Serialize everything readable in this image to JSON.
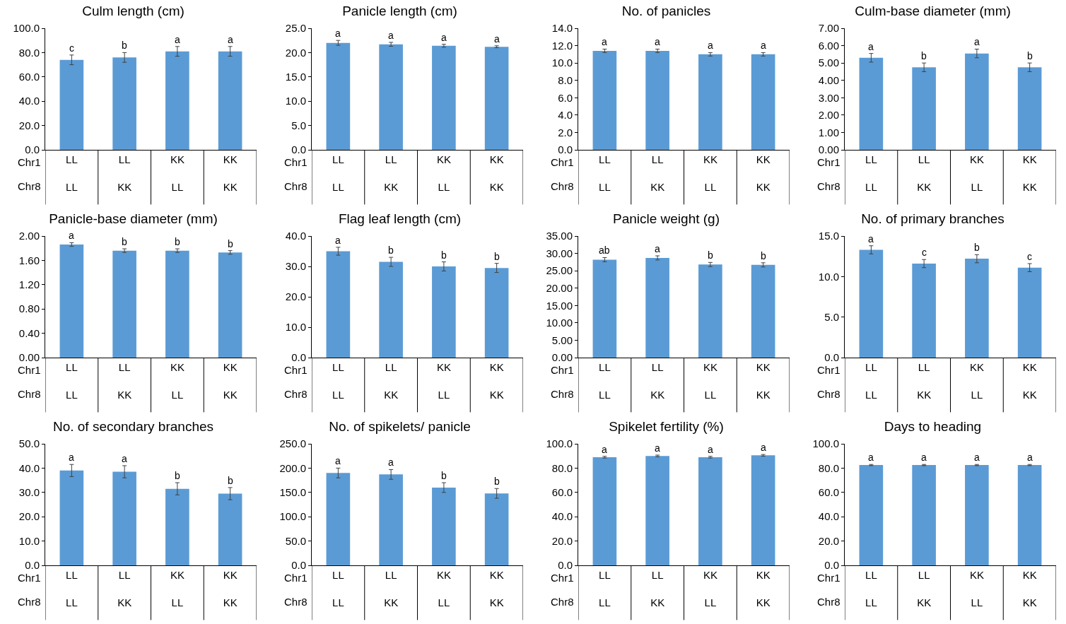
{
  "chart_data": [
    {
      "type": "bar",
      "title": "Culm length (cm)",
      "categories": [
        "LL\nLL",
        "LL\nKK",
        "KK\nLL",
        "KK\nKK"
      ],
      "values": [
        74,
        76,
        81,
        81
      ],
      "errors": [
        4,
        4,
        4,
        4
      ],
      "value_labels": [
        "c",
        "b",
        "a",
        "a"
      ],
      "color": "#5b9bd5",
      "ylim": [
        0,
        100
      ],
      "yticks": [
        {
          "value": 0,
          "label": "0.0"
        },
        {
          "value": 20,
          "label": "20.0"
        },
        {
          "value": 40,
          "label": "40.0"
        },
        {
          "value": 60,
          "label": "60.0"
        },
        {
          "value": 80,
          "label": "80.0"
        },
        {
          "value": 100,
          "label": "100.0"
        }
      ],
      "annotations": [
        "Chr1",
        "Chr8"
      ],
      "grid": false,
      "legend": false
    },
    {
      "type": "bar",
      "title": "Panicle length (cm)",
      "categories": [
        "LL\nLL",
        "LL\nKK",
        "KK\nLL",
        "KK\nKK"
      ],
      "values": [
        22,
        21.7,
        21.4,
        21.2
      ],
      "errors": [
        0.5,
        0.4,
        0.3,
        0.2
      ],
      "value_labels": [
        "a",
        "a",
        "a",
        "a"
      ],
      "color": "#5b9bd5",
      "ylim": [
        0,
        25
      ],
      "yticks": [
        {
          "value": 0,
          "label": "0.0"
        },
        {
          "value": 5,
          "label": "5.0"
        },
        {
          "value": 10,
          "label": "10.0"
        },
        {
          "value": 15,
          "label": "15.0"
        },
        {
          "value": 20,
          "label": "20.0"
        },
        {
          "value": 25,
          "label": "25.0"
        }
      ],
      "annotations": [
        "Chr1",
        "Chr8"
      ],
      "grid": false,
      "legend": false
    },
    {
      "type": "bar",
      "title": "No. of panicles",
      "categories": [
        "LL\nLL",
        "LL\nKK",
        "KK\nLL",
        "KK\nKK"
      ],
      "values": [
        11.4,
        11.4,
        11,
        11
      ],
      "errors": [
        0.2,
        0.2,
        0.2,
        0.2
      ],
      "value_labels": [
        "a",
        "a",
        "a",
        "a"
      ],
      "color": "#5b9bd5",
      "ylim": [
        0,
        14
      ],
      "yticks": [
        {
          "value": 0,
          "label": "0.0"
        },
        {
          "value": 2,
          "label": "2.0"
        },
        {
          "value": 4,
          "label": "4.0"
        },
        {
          "value": 6,
          "label": "6.0"
        },
        {
          "value": 8,
          "label": "8.0"
        },
        {
          "value": 10,
          "label": "10.0"
        },
        {
          "value": 12,
          "label": "12.0"
        },
        {
          "value": 14,
          "label": "14.0"
        }
      ],
      "annotations": [
        "Chr1",
        "Chr8"
      ],
      "grid": false,
      "legend": false
    },
    {
      "type": "bar",
      "title": "Culm-base diameter (mm)",
      "categories": [
        "LL\nLL",
        "LL\nKK",
        "KK\nLL",
        "KK\nKK"
      ],
      "values": [
        5.3,
        4.75,
        5.55,
        4.75
      ],
      "errors": [
        0.25,
        0.25,
        0.25,
        0.25
      ],
      "value_labels": [
        "a",
        "b",
        "a",
        "b"
      ],
      "color": "#5b9bd5",
      "ylim": [
        0,
        7
      ],
      "yticks": [
        {
          "value": 0,
          "label": "0.00"
        },
        {
          "value": 1,
          "label": "1.00"
        },
        {
          "value": 2,
          "label": "2.00"
        },
        {
          "value": 3,
          "label": "3.00"
        },
        {
          "value": 4,
          "label": "4.00"
        },
        {
          "value": 5,
          "label": "5.00"
        },
        {
          "value": 6,
          "label": "6.00"
        },
        {
          "value": 7,
          "label": "7.00"
        }
      ],
      "annotations": [
        "Chr1",
        "Chr8"
      ],
      "grid": false,
      "legend": false
    },
    {
      "type": "bar",
      "title": "Panicle-base diameter (mm)",
      "categories": [
        "LL\nLL",
        "LL\nKK",
        "KK\nLL",
        "KK\nKK"
      ],
      "values": [
        1.86,
        1.76,
        1.76,
        1.73
      ],
      "errors": [
        0.03,
        0.03,
        0.03,
        0.03
      ],
      "value_labels": [
        "a",
        "b",
        "b",
        "b"
      ],
      "color": "#5b9bd5",
      "ylim": [
        0,
        2
      ],
      "yticks": [
        {
          "value": 0,
          "label": "0.00"
        },
        {
          "value": 0.4,
          "label": "0.40"
        },
        {
          "value": 0.8,
          "label": "0.80"
        },
        {
          "value": 1.2,
          "label": "1.20"
        },
        {
          "value": 1.6,
          "label": "1.60"
        },
        {
          "value": 2,
          "label": "2.00"
        }
      ],
      "annotations": [
        "Chr1",
        "Chr8"
      ],
      "grid": false,
      "legend": false
    },
    {
      "type": "bar",
      "title": "Flag leaf length (cm)",
      "categories": [
        "LL\nLL",
        "LL\nKK",
        "KK\nLL",
        "KK\nKK"
      ],
      "values": [
        35,
        31.5,
        30,
        29.5
      ],
      "errors": [
        1.3,
        1.5,
        1.5,
        1.5
      ],
      "value_labels": [
        "a",
        "b",
        "b",
        "b"
      ],
      "color": "#5b9bd5",
      "ylim": [
        0,
        40
      ],
      "yticks": [
        {
          "value": 0,
          "label": "0.0"
        },
        {
          "value": 10,
          "label": "10.0"
        },
        {
          "value": 20,
          "label": "20.0"
        },
        {
          "value": 30,
          "label": "30.0"
        },
        {
          "value": 40,
          "label": "40.0"
        }
      ],
      "annotations": [
        "Chr1",
        "Chr8"
      ],
      "grid": false,
      "legend": false
    },
    {
      "type": "bar",
      "title": "Panicle weight (g)",
      "categories": [
        "LL\nLL",
        "LL\nKK",
        "KK\nLL",
        "KK\nKK"
      ],
      "values": [
        28.2,
        28.7,
        26.8,
        26.7
      ],
      "errors": [
        0.6,
        0.6,
        0.6,
        0.6
      ],
      "value_labels": [
        "ab",
        "a",
        "b",
        "b"
      ],
      "color": "#5b9bd5",
      "ylim": [
        0,
        35
      ],
      "yticks": [
        {
          "value": 0,
          "label": "0.00"
        },
        {
          "value": 5,
          "label": "5.00"
        },
        {
          "value": 10,
          "label": "10.00"
        },
        {
          "value": 15,
          "label": "15.00"
        },
        {
          "value": 20,
          "label": "20.00"
        },
        {
          "value": 25,
          "label": "25.00"
        },
        {
          "value": 30,
          "label": "30.00"
        },
        {
          "value": 35,
          "label": "35.00"
        }
      ],
      "annotations": [
        "Chr1",
        "Chr8"
      ],
      "grid": false,
      "legend": false
    },
    {
      "type": "bar",
      "title": "No. of primary branches",
      "categories": [
        "LL\nLL",
        "LL\nKK",
        "KK\nLL",
        "KK\nKK"
      ],
      "values": [
        13.3,
        11.6,
        12.2,
        11.1
      ],
      "errors": [
        0.5,
        0.5,
        0.5,
        0.5
      ],
      "value_labels": [
        "a",
        "c",
        "b",
        "c"
      ],
      "color": "#5b9bd5",
      "ylim": [
        0,
        15
      ],
      "yticks": [
        {
          "value": 0,
          "label": "0.0"
        },
        {
          "value": 5,
          "label": "5.0"
        },
        {
          "value": 10,
          "label": "10.0"
        },
        {
          "value": 15,
          "label": "15.0"
        }
      ],
      "annotations": [
        "Chr1",
        "Chr8"
      ],
      "grid": false,
      "legend": false
    },
    {
      "type": "bar",
      "title": "No. of secondary branches",
      "categories": [
        "LL\nLL",
        "LL\nKK",
        "KK\nLL",
        "KK\nKK"
      ],
      "values": [
        39,
        38.5,
        31.5,
        29.5
      ],
      "errors": [
        2.5,
        2.5,
        2.5,
        2.5
      ],
      "value_labels": [
        "a",
        "a",
        "b",
        "b"
      ],
      "color": "#5b9bd5",
      "ylim": [
        0,
        50
      ],
      "yticks": [
        {
          "value": 0,
          "label": "0.0"
        },
        {
          "value": 10,
          "label": "10.0"
        },
        {
          "value": 20,
          "label": "20.0"
        },
        {
          "value": 30,
          "label": "30.0"
        },
        {
          "value": 40,
          "label": "40.0"
        },
        {
          "value": 50,
          "label": "50.0"
        }
      ],
      "annotations": [
        "Chr1",
        "Chr8"
      ],
      "grid": false,
      "legend": false
    },
    {
      "type": "bar",
      "title": "No. of spikelets/ panicle",
      "categories": [
        "LL\nLL",
        "LL\nKK",
        "KK\nLL",
        "KK\nKK"
      ],
      "values": [
        190,
        187,
        160,
        148
      ],
      "errors": [
        10,
        10,
        10,
        10
      ],
      "value_labels": [
        "a",
        "a",
        "b",
        "b"
      ],
      "color": "#5b9bd5",
      "ylim": [
        0,
        250
      ],
      "yticks": [
        {
          "value": 0,
          "label": "0.0"
        },
        {
          "value": 50,
          "label": "50.0"
        },
        {
          "value": 100,
          "label": "100.0"
        },
        {
          "value": 150,
          "label": "150.0"
        },
        {
          "value": 200,
          "label": "200.0"
        },
        {
          "value": 250,
          "label": "250.0"
        }
      ],
      "annotations": [
        "Chr1",
        "Chr8"
      ],
      "grid": false,
      "legend": false
    },
    {
      "type": "bar",
      "title": "Spikelet fertility (%)",
      "categories": [
        "LL\nLL",
        "LL\nKK",
        "KK\nLL",
        "KK\nKK"
      ],
      "values": [
        89,
        90,
        89,
        90.5
      ],
      "errors": [
        0.7,
        0.7,
        0.7,
        0.7
      ],
      "value_labels": [
        "a",
        "a",
        "a",
        "a"
      ],
      "color": "#5b9bd5",
      "ylim": [
        0,
        100
      ],
      "yticks": [
        {
          "value": 0,
          "label": "0.0"
        },
        {
          "value": 20,
          "label": "20.0"
        },
        {
          "value": 40,
          "label": "40.0"
        },
        {
          "value": 60,
          "label": "60.0"
        },
        {
          "value": 80,
          "label": "80.0"
        },
        {
          "value": 100,
          "label": "100.0"
        }
      ],
      "annotations": [
        "Chr1",
        "Chr8"
      ],
      "grid": false,
      "legend": false
    },
    {
      "type": "bar",
      "title": "Days to heading",
      "categories": [
        "LL\nLL",
        "LL\nKK",
        "KK\nLL",
        "KK\nKK"
      ],
      "values": [
        82.5,
        82.5,
        82.5,
        82.5
      ],
      "errors": [
        0.5,
        0.5,
        0.5,
        0.5
      ],
      "value_labels": [
        "a",
        "a",
        "a",
        "a"
      ],
      "color": "#5b9bd5",
      "ylim": [
        0,
        100
      ],
      "yticks": [
        {
          "value": 0,
          "label": "0.0"
        },
        {
          "value": 20,
          "label": "20.0"
        },
        {
          "value": 40,
          "label": "40.0"
        },
        {
          "value": 60,
          "label": "60.0"
        },
        {
          "value": 80,
          "label": "80.0"
        },
        {
          "value": 100,
          "label": "100.0"
        }
      ],
      "annotations": [
        "Chr1",
        "Chr8"
      ],
      "grid": false,
      "legend": false
    }
  ]
}
